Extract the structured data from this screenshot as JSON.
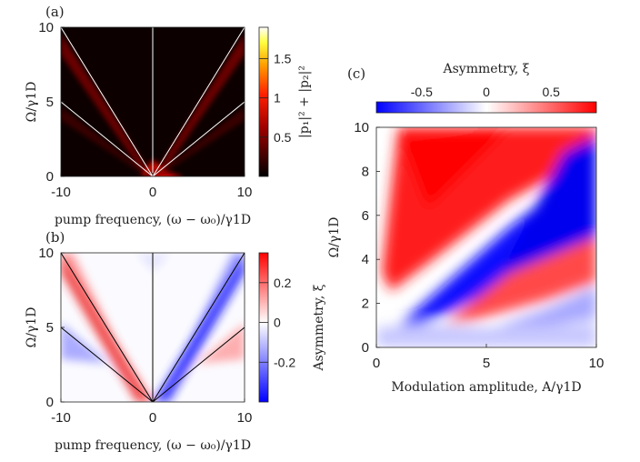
{
  "figure": {
    "panel_a_label": "(a)",
    "panel_b_label": "(b)",
    "panel_c_label": "(c)"
  },
  "chart_data": [
    {
      "type": "heatmap",
      "panel": "(a)",
      "xlabel": "pump frequency, (ω − ω₀)/γ1D",
      "ylabel": "Ω/γ1D",
      "xlim": [
        -10,
        10
      ],
      "ylim": [
        0,
        10
      ],
      "x_ticks": [
        "-10",
        "0",
        "10"
      ],
      "y_ticks": [
        "0",
        "5",
        "10"
      ],
      "colorbar": {
        "label": "|p₁|² + |p₂|²",
        "range": [
          0,
          1.9
        ],
        "ticks": [
          "0.5",
          "1",
          "1.5"
        ],
        "colormap": "hot"
      },
      "overlay_lines_color": "#ffffff",
      "peak": {
        "x": 1,
        "y": 0,
        "value": 1.9
      }
    },
    {
      "type": "heatmap",
      "panel": "(b)",
      "xlabel": "pump frequency, (ω − ω₀)/γ1D",
      "ylabel": "Ω/γ1D",
      "xlim": [
        -10,
        10
      ],
      "ylim": [
        0,
        10
      ],
      "x_ticks": [
        "-10",
        "0",
        "10"
      ],
      "y_ticks": [
        "0",
        "5",
        "10"
      ],
      "colorbar": {
        "label": "Asymmetry, ξ",
        "range": [
          -0.4,
          0.35
        ],
        "ticks": [
          "0.2",
          "0",
          "-0.2"
        ],
        "colormap": "blue-white-red"
      },
      "overlay_lines_color": "#000000"
    },
    {
      "type": "heatmap",
      "panel": "(c)",
      "xlabel": "Modulation amplitude, A/γ1D",
      "ylabel": "Ω/γ1D",
      "xlim": [
        0,
        10
      ],
      "ylim": [
        0,
        10
      ],
      "x_ticks": [
        "0",
        "5",
        "10"
      ],
      "y_ticks": [
        "0",
        "2",
        "4",
        "6",
        "8",
        "10"
      ],
      "colorbar": {
        "label": "Asymmetry, ξ",
        "range": [
          -0.85,
          0.85
        ],
        "ticks": [
          "-0.5",
          "0",
          "0.5"
        ],
        "colormap": "blue-white-red"
      }
    }
  ]
}
